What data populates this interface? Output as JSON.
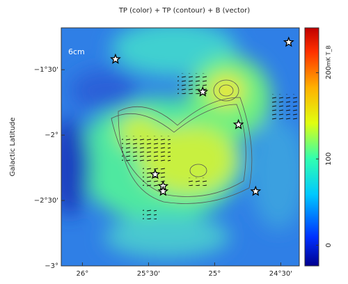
{
  "chart_data": {
    "type": "image",
    "title": "TP (color) + TP (contour) + B (vector)",
    "annotation": "6cm",
    "ylabel": "Galactic Latitude",
    "xlim": [
      26.16,
      24.36
    ],
    "ylim": [
      -3,
      -1.18
    ],
    "xticks": [
      {
        "value": 26,
        "label": "26°"
      },
      {
        "value": 25.5,
        "label": "25°30'"
      },
      {
        "value": 25,
        "label": "25°"
      },
      {
        "value": 24.5,
        "label": "24°30'"
      }
    ],
    "yticks": [
      {
        "value": -1.5,
        "label": "−1°30'"
      },
      {
        "value": -2,
        "label": "−2°"
      },
      {
        "value": -2.5,
        "label": "−2°30'"
      },
      {
        "value": -3,
        "label": "−3°"
      }
    ],
    "colorbar": {
      "label": "mK T_B",
      "lim": [
        -24,
        252
      ],
      "ticks": [
        0,
        100,
        200
      ]
    },
    "sources": {
      "x": [
        25.75,
        24.44,
        25.09,
        24.82,
        25.45,
        25.39,
        25.39,
        24.69
      ],
      "y": [
        -1.42,
        -1.29,
        -1.67,
        -1.92,
        -2.3,
        -2.39,
        -2.43,
        -2.43
      ]
    }
  }
}
